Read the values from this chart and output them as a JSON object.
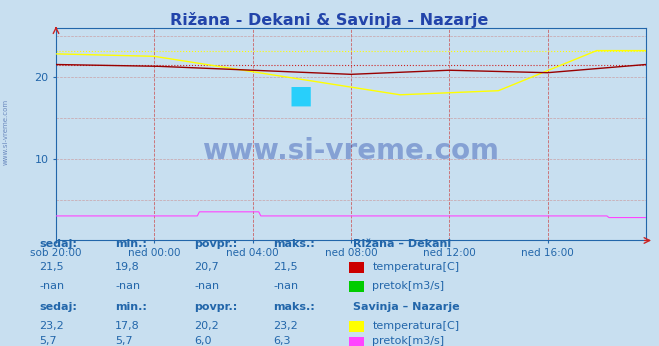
{
  "title": "Rižana - Dekani & Savinja - Nazarje",
  "title_color": "#2244aa",
  "bg_color": "#c8dff0",
  "plot_bg": "#c8dff0",
  "grid_color_v": "#cc4444",
  "grid_color_h": "#cc8888",
  "ylim": [
    0,
    26
  ],
  "xlim": [
    0,
    288
  ],
  "rizana_temp_color": "#990000",
  "rizana_temp_dotted_color": "#cc2222",
  "savinja_temp_color": "#ffff00",
  "savinja_temp_dotted_color": "#ffff00",
  "savinja_pretok_color": "#ff44ff",
  "rizana_pretok_color": "#44cc44",
  "watermark": "www.si-vreme.com",
  "watermark_color": "#2244aa",
  "watermark_alpha": 0.4,
  "lc": "#2266aa",
  "lsize": 8,
  "rizana_temp_val": 21.5,
  "rizana_temp_min": 19.8,
  "savinja_temp_start": 23.0,
  "savinja_temp_min": 17.8,
  "savinja_temp_end": 23.2,
  "savinja_pretok_val": 5.7,
  "savinja_pretok_max": 6.3
}
